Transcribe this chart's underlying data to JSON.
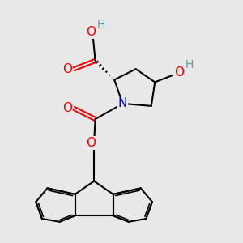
{
  "background_color": "#e8e8e8",
  "bond_color": "#000000",
  "bond_width": 1.5,
  "atom_colors": {
    "O": "#ff0000",
    "N": "#0000cd",
    "H_gray": "#5f9ea0",
    "C": "#000000"
  },
  "font_size_atoms": 10,
  "figsize": [
    3.0,
    3.0
  ],
  "dpi": 100
}
